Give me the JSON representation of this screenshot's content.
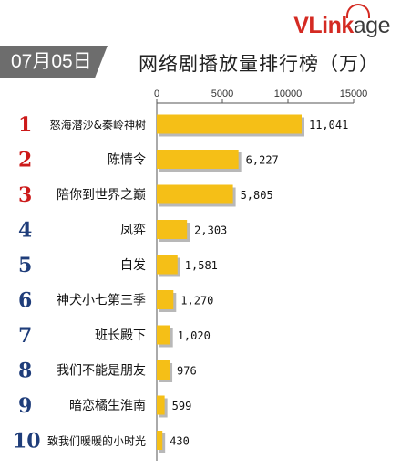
{
  "header": {
    "date": "07月05日",
    "logo_parts": [
      "V",
      "Link",
      "age"
    ],
    "title": "网络剧播放量排行榜（万）"
  },
  "colors": {
    "bar_fill": "#f5bf17",
    "bar_shadow": "#b8b8b8",
    "rank_top": "#cc1a1a",
    "rank_other": "#1f3d7a",
    "axis": "#555555",
    "badge": "#6d6d6d"
  },
  "chart_data": {
    "type": "bar",
    "orientation": "horizontal",
    "title": "网络剧播放量排行榜（万）",
    "xlim": [
      0,
      15000
    ],
    "ticks": [
      "0",
      "5000",
      "10000",
      "15000"
    ],
    "tick_values": [
      0,
      5000,
      10000,
      15000
    ],
    "ranks": [
      "1",
      "2",
      "3",
      "4",
      "5",
      "6",
      "7",
      "8",
      "9",
      "10"
    ],
    "categories": [
      "怒海潜沙&秦岭神树",
      "陈情令",
      "陪你到世界之巅",
      "凤弈",
      "白发",
      "神犬小七第三季",
      "班长殿下",
      "我们不能是朋友",
      "暗恋橘生淮南",
      "致我们暖暖的小时光"
    ],
    "values": [
      11041,
      6227,
      5805,
      2303,
      1581,
      1270,
      1020,
      976,
      599,
      430
    ],
    "value_labels": [
      "11,041",
      "6,227",
      "5,805",
      "2,303",
      "1,581",
      "1,270",
      "1,020",
      "976",
      "599",
      "430"
    ],
    "grid": false
  }
}
